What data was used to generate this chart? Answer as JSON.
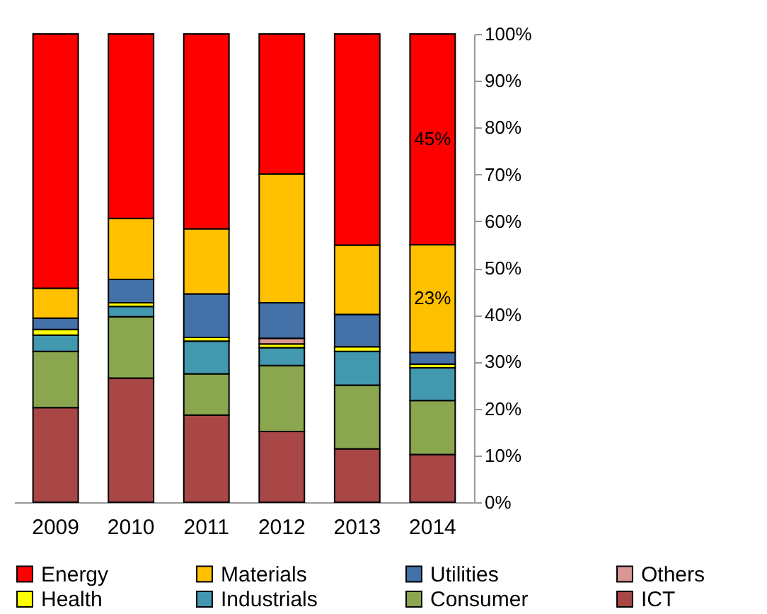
{
  "chart_data": {
    "type": "bar",
    "stacked": true,
    "categories": [
      "2009",
      "2010",
      "2011",
      "2012",
      "2013",
      "2014"
    ],
    "series": [
      {
        "name": "ICT",
        "color": "#a94646",
        "values": [
          20.2,
          26.5,
          18.6,
          15.1,
          11.4,
          10.2
        ]
      },
      {
        "name": "Consumer",
        "color": "#8aa64e",
        "values": [
          12.0,
          13.1,
          8.8,
          14.1,
          13.6,
          11.5
        ]
      },
      {
        "name": "Industrials",
        "color": "#4198af",
        "values": [
          3.5,
          2.2,
          7.0,
          3.8,
          7.2,
          7.0
        ]
      },
      {
        "name": "Health",
        "color": "#ffff00",
        "values": [
          1.2,
          0.8,
          0.8,
          0.8,
          1.0,
          0.8
        ]
      },
      {
        "name": "Others",
        "color": "#d99694",
        "values": [
          null,
          null,
          null,
          1.2,
          null,
          null
        ]
      },
      {
        "name": "Utilities",
        "color": "#4471a7",
        "values": [
          2.4,
          5.0,
          9.3,
          7.6,
          6.9,
          2.5
        ]
      },
      {
        "name": "Materials",
        "color": "#ffc000",
        "values": [
          6.4,
          13.0,
          13.9,
          27.5,
          14.8,
          23
        ],
        "value_labels": [
          null,
          null,
          null,
          null,
          null,
          "23%"
        ]
      },
      {
        "name": "Energy",
        "color": "#ff0000",
        "values": [
          54.3,
          39.4,
          41.6,
          29.9,
          45.1,
          45
        ],
        "value_labels": [
          null,
          null,
          null,
          null,
          null,
          "45%"
        ]
      }
    ],
    "ylim": [
      0,
      100
    ],
    "yticks": [
      {
        "value": 0,
        "label": "0%"
      },
      {
        "value": 10,
        "label": "10%"
      },
      {
        "value": 20,
        "label": "20%"
      },
      {
        "value": 30,
        "label": "30%"
      },
      {
        "value": 40,
        "label": "40%"
      },
      {
        "value": 50,
        "label": "50%"
      },
      {
        "value": 60,
        "label": "60%"
      },
      {
        "value": 70,
        "label": "70%"
      },
      {
        "value": 80,
        "label": "80%"
      },
      {
        "value": 90,
        "label": "90%"
      },
      {
        "value": 100,
        "label": "100%"
      }
    ],
    "grid": false,
    "legend": "bottom"
  }
}
